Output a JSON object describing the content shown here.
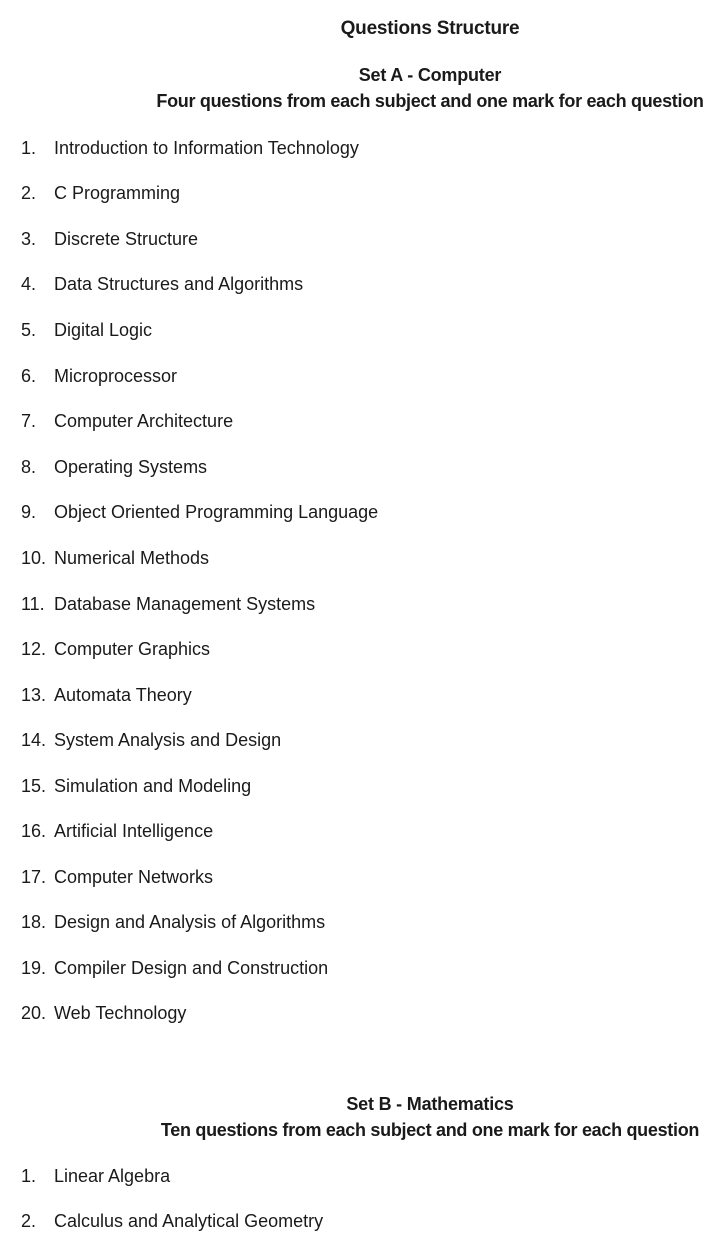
{
  "document": {
    "title": "Questions Structure"
  },
  "set_a": {
    "heading": "Set A - Computer",
    "subheading": "Four questions from each subject and one mark for each question",
    "subjects": [
      {
        "num": "1.",
        "name": "Introduction to Information Technology"
      },
      {
        "num": "2.",
        "name": "C Programming"
      },
      {
        "num": "3.",
        "name": "Discrete Structure"
      },
      {
        "num": "4.",
        "name": "Data Structures and Algorithms"
      },
      {
        "num": "5.",
        "name": "Digital Logic"
      },
      {
        "num": "6.",
        "name": "Microprocessor"
      },
      {
        "num": "7.",
        "name": "Computer Architecture"
      },
      {
        "num": "8.",
        "name": "Operating Systems"
      },
      {
        "num": "9.",
        "name": "Object Oriented Programming Language"
      },
      {
        "num": "10.",
        "name": "Numerical Methods"
      },
      {
        "num": "11.",
        "name": "Database Management Systems"
      },
      {
        "num": "12.",
        "name": "Computer Graphics"
      },
      {
        "num": "13.",
        "name": "Automata Theory"
      },
      {
        "num": "14.",
        "name": "System Analysis and Design"
      },
      {
        "num": "15.",
        "name": "Simulation and Modeling"
      },
      {
        "num": "16.",
        "name": "Artificial Intelligence"
      },
      {
        "num": "17.",
        "name": "Computer Networks"
      },
      {
        "num": "18.",
        "name": "Design and Analysis of Algorithms"
      },
      {
        "num": "19.",
        "name": "Compiler Design and Construction"
      },
      {
        "num": "20.",
        "name": "Web Technology"
      }
    ]
  },
  "set_b": {
    "heading": "Set B - Mathematics",
    "subheading": "Ten questions from each subject and one mark for each question",
    "subjects": [
      {
        "num": "1.",
        "name": "Linear Algebra"
      },
      {
        "num": "2.",
        "name": "Calculus and Analytical Geometry"
      }
    ]
  }
}
